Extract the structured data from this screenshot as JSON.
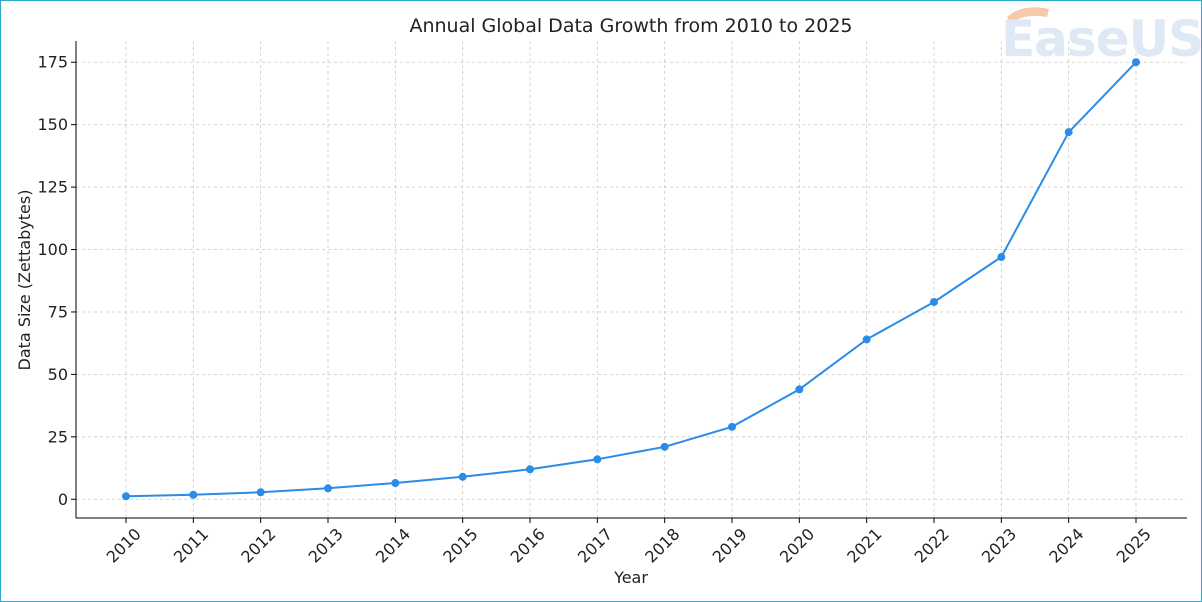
{
  "chart_data": {
    "type": "line",
    "title": "Annual Global Data Growth from 2010 to 2025",
    "xlabel": "Year",
    "ylabel": "Data Size (Zettabytes)",
    "x": [
      "2010",
      "2011",
      "2012",
      "2013",
      "2014",
      "2015",
      "2016",
      "2017",
      "2018",
      "2019",
      "2020",
      "2021",
      "2022",
      "2023",
      "2024",
      "2025"
    ],
    "series": [
      {
        "values": [
          1.2,
          1.8,
          2.8,
          4.4,
          6.5,
          9,
          12,
          16,
          21,
          29,
          44,
          64,
          79,
          97,
          147,
          175
        ]
      }
    ],
    "y_ticks": [
      "0",
      "25",
      "50",
      "75",
      "100",
      "125",
      "150",
      "175"
    ],
    "ylim": [
      -7.5,
      183.5
    ],
    "grid": true,
    "grid_style": "dashed",
    "legend": "none",
    "colors": {
      "line": "#2b8ce8",
      "marker": "#2b8ce8",
      "grid": "#c8c8c8",
      "axis": "#000000"
    }
  },
  "watermark": {
    "text": "EaseUS",
    "color": "#dfe8f5",
    "accent": "#f6c9a8"
  }
}
